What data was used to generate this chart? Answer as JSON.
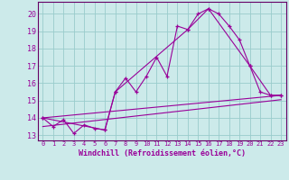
{
  "xlabel": "Windchill (Refroidissement éolien,°C)",
  "xlim": [
    -0.5,
    23.5
  ],
  "ylim": [
    12.7,
    20.7
  ],
  "xticks": [
    0,
    1,
    2,
    3,
    4,
    5,
    6,
    7,
    8,
    9,
    10,
    11,
    12,
    13,
    14,
    15,
    16,
    17,
    18,
    19,
    20,
    21,
    22,
    23
  ],
  "yticks": [
    13,
    14,
    15,
    16,
    17,
    18,
    19,
    20
  ],
  "bg_color": "#cceaea",
  "grid_color": "#99cccc",
  "line_color": "#990099",
  "spine_color": "#660066",
  "line1_x": [
    0,
    1,
    2,
    3,
    4,
    5,
    6,
    7,
    8,
    9,
    10,
    11,
    12,
    13,
    14,
    15,
    16,
    17,
    18,
    19,
    20,
    21,
    22,
    23
  ],
  "line1_y": [
    14.0,
    13.5,
    13.9,
    13.1,
    13.6,
    13.4,
    13.3,
    15.5,
    16.3,
    15.5,
    16.4,
    17.5,
    16.4,
    19.3,
    19.1,
    20.0,
    20.3,
    20.0,
    19.3,
    18.5,
    17.0,
    15.5,
    15.3,
    15.3
  ],
  "line2_x": [
    0,
    6,
    7,
    14,
    16,
    20,
    22,
    23
  ],
  "line2_y": [
    14.0,
    13.3,
    15.5,
    19.1,
    20.3,
    17.0,
    15.3,
    15.3
  ],
  "line3_x": [
    0,
    23
  ],
  "line3_y": [
    14.0,
    15.3
  ],
  "line4_x": [
    0,
    23
  ],
  "line4_y": [
    13.5,
    15.05
  ]
}
